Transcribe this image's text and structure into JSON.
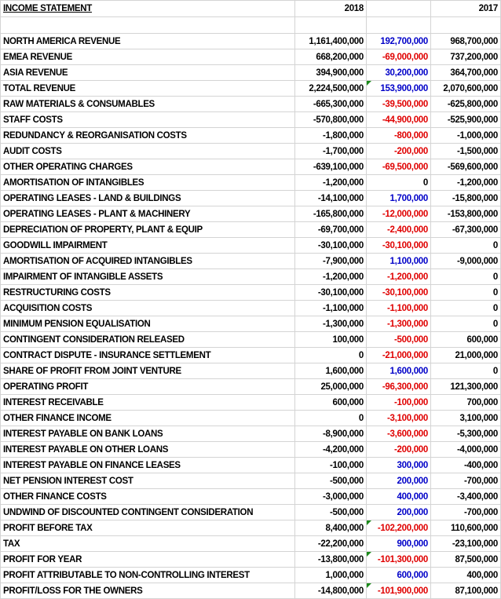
{
  "header": {
    "title": "INCOME STATEMENT",
    "col_2018": "2018",
    "col_diff": "",
    "col_2017": "2017"
  },
  "colors": {
    "negative_diff": "#e00000",
    "positive_diff": "#0000c8",
    "error_indicator": "#1a8a1a"
  },
  "rows": [
    {
      "label": "NORTH AMERICA REVENUE",
      "y2018": "1,161,400,000",
      "diff": "192,700,000",
      "y2017": "968,700,000"
    },
    {
      "label": "EMEA REVENUE",
      "y2018": "668,200,000",
      "diff": "-69,000,000",
      "y2017": "737,200,000"
    },
    {
      "label": "ASIA REVENUE",
      "y2018": "394,900,000",
      "diff": "30,200,000",
      "y2017": "364,700,000"
    },
    {
      "label": "TOTAL REVENUE",
      "y2018": "2,224,500,000",
      "diff": "153,900,000",
      "y2017": "2,070,600,000",
      "bold": true,
      "error_indicator": true
    },
    {
      "label": "RAW MATERIALS & CONSUMABLES",
      "y2018": "-665,300,000",
      "diff": "-39,500,000",
      "y2017": "-625,800,000"
    },
    {
      "label": "STAFF COSTS",
      "y2018": "-570,800,000",
      "diff": "-44,900,000",
      "y2017": "-525,900,000"
    },
    {
      "label": "REDUNDANCY & REORGANISATION COSTS",
      "y2018": "-1,800,000",
      "diff": "-800,000",
      "y2017": "-1,000,000"
    },
    {
      "label": "AUDIT COSTS",
      "y2018": "-1,700,000",
      "diff": "-200,000",
      "y2017": "-1,500,000"
    },
    {
      "label": "OTHER OPERATING CHARGES",
      "y2018": "-639,100,000",
      "diff": "-69,500,000",
      "y2017": "-569,600,000"
    },
    {
      "label": "AMORTISATION OF INTANGIBLES",
      "y2018": "-1,200,000",
      "diff": "0",
      "y2017": "-1,200,000"
    },
    {
      "label": "OPERATING LEASES - LAND & BUILDINGS",
      "y2018": "-14,100,000",
      "diff": "1,700,000",
      "y2017": "-15,800,000"
    },
    {
      "label": "OPERATING LEASES - PLANT & MACHINERY",
      "y2018": "-165,800,000",
      "diff": "-12,000,000",
      "y2017": "-153,800,000"
    },
    {
      "label": "DEPRECIATION OF PROPERTY, PLANT & EQUIP",
      "y2018": "-69,700,000",
      "diff": "-2,400,000",
      "y2017": "-67,300,000"
    },
    {
      "label": "GOODWILL IMPAIRMENT",
      "y2018": "-30,100,000",
      "diff": "-30,100,000",
      "y2017": "0"
    },
    {
      "label": "AMORTISATION OF ACQUIRED INTANGIBLES",
      "y2018": "-7,900,000",
      "diff": "1,100,000",
      "y2017": "-9,000,000"
    },
    {
      "label": "IMPAIRMENT OF INTANGIBLE ASSETS",
      "y2018": "-1,200,000",
      "diff": "-1,200,000",
      "y2017": "0"
    },
    {
      "label": "RESTRUCTURING COSTS",
      "y2018": "-30,100,000",
      "diff": "-30,100,000",
      "y2017": "0"
    },
    {
      "label": "ACQUISITION COSTS",
      "y2018": "-1,100,000",
      "diff": "-1,100,000",
      "y2017": "0"
    },
    {
      "label": "MINIMUM PENSION EQUALISATION",
      "y2018": "-1,300,000",
      "diff": "-1,300,000",
      "y2017": "0"
    },
    {
      "label": "CONTINGENT CONSIDERATION RELEASED",
      "y2018": "100,000",
      "diff": "-500,000",
      "y2017": "600,000"
    },
    {
      "label": "CONTRACT DISPUTE - INSURANCE SETTLEMENT",
      "y2018": "0",
      "diff": "-21,000,000",
      "y2017": "21,000,000"
    },
    {
      "label": "SHARE OF PROFIT FROM JOINT VENTURE",
      "y2018": "1,600,000",
      "diff": "1,600,000",
      "y2017": "0"
    },
    {
      "label": "OPERATING PROFIT",
      "y2018": "25,000,000",
      "diff": "-96,300,000",
      "y2017": "121,300,000",
      "bold": true
    },
    {
      "label": "INTEREST RECEIVABLE",
      "y2018": "600,000",
      "diff": "-100,000",
      "y2017": "700,000"
    },
    {
      "label": "OTHER FINANCE INCOME",
      "y2018": "0",
      "diff": "-3,100,000",
      "y2017": "3,100,000"
    },
    {
      "label": "INTEREST PAYABLE ON BANK LOANS",
      "y2018": "-8,900,000",
      "diff": "-3,600,000",
      "y2017": "-5,300,000"
    },
    {
      "label": "INTEREST PAYABLE ON OTHER LOANS",
      "y2018": "-4,200,000",
      "diff": "-200,000",
      "y2017": "-4,000,000"
    },
    {
      "label": "INTEREST PAYABLE ON FINANCE LEASES",
      "y2018": "-100,000",
      "diff": "300,000",
      "y2017": "-400,000"
    },
    {
      "label": "NET PENSION INTEREST COST",
      "y2018": "-500,000",
      "diff": "200,000",
      "y2017": "-700,000"
    },
    {
      "label": "OTHER FINANCE COSTS",
      "y2018": "-3,000,000",
      "diff": "400,000",
      "y2017": "-3,400,000"
    },
    {
      "label": "UNDWIND OF DISCOUNTED CONTINGENT CONSIDERATION",
      "y2018": "-500,000",
      "diff": "200,000",
      "y2017": "-700,000"
    },
    {
      "label": "PROFIT BEFORE TAX",
      "y2018": "8,400,000",
      "diff": "-102,200,000",
      "y2017": "110,600,000",
      "bold": true,
      "error_indicator": true
    },
    {
      "label": "TAX",
      "y2018": "-22,200,000",
      "diff": "900,000",
      "y2017": "-23,100,000"
    },
    {
      "label": "PROFIT FOR YEAR",
      "y2018": "-13,800,000",
      "diff": "-101,300,000",
      "y2017": "87,500,000",
      "bold": true,
      "error_indicator": true
    },
    {
      "label": "PROFIT ATTRIBUTABLE TO NON-CONTROLLING INTEREST",
      "y2018": "1,000,000",
      "diff": "600,000",
      "y2017": "400,000"
    },
    {
      "label": "PROFIT/LOSS FOR THE OWNERS",
      "y2018": "-14,800,000",
      "diff": "-101,900,000",
      "y2017": "87,100,000",
      "bold": true,
      "error_indicator": true
    }
  ]
}
